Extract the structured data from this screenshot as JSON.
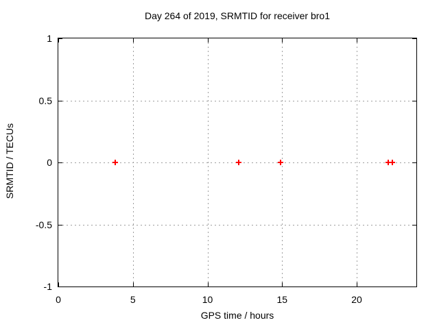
{
  "figure": {
    "background": "#ffffff",
    "border_color": "#000000",
    "text_color": "#000000"
  },
  "chart_data": {
    "type": "scatter",
    "title": "Day 264 of 2019, SRMTID for receiver bro1",
    "xlabel": "GPS time / hours",
    "ylabel": "SRMTID / TECUs",
    "xlim": [
      0,
      24
    ],
    "ylim": [
      -1,
      1
    ],
    "xticks": [
      0,
      5,
      10,
      15,
      20
    ],
    "yticks": [
      -1,
      -0.5,
      0,
      0.5,
      1
    ],
    "grid": "dotted",
    "grid_color": "#9e9e9e",
    "legend": "none",
    "series": [
      {
        "name": "SRMTID",
        "marker": "plus",
        "color": "#ff0000",
        "points": [
          {
            "x": 3.8,
            "y": 0
          },
          {
            "x": 12.1,
            "y": 0
          },
          {
            "x": 14.9,
            "y": 0
          },
          {
            "x": 22.1,
            "y": 0
          },
          {
            "x": 22.4,
            "y": 0
          }
        ]
      }
    ]
  }
}
